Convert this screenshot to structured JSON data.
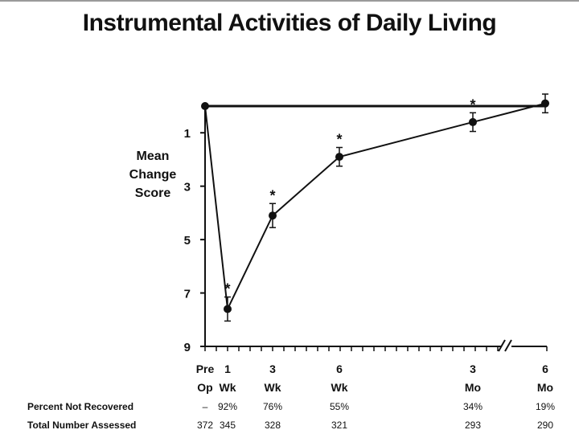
{
  "chart_data": {
    "type": "line",
    "title": "Instrumental Activities of Daily Living",
    "ylabel": [
      "Mean",
      "Change",
      "Score"
    ],
    "y_ticks": [
      1,
      3,
      5,
      7,
      9
    ],
    "ylim": [
      0,
      9
    ],
    "y_inverted": true,
    "x_tick_labels": [
      {
        "top": "Pre",
        "bottom": "Op"
      },
      {
        "top": "1",
        "bottom": "Wk"
      },
      {
        "top": "3",
        "bottom": "Wk"
      },
      {
        "top": "6",
        "bottom": "Wk"
      },
      {
        "top": "3",
        "bottom": "Mo"
      },
      {
        "top": "6",
        "bottom": "Mo"
      }
    ],
    "axis_break_before_last": true,
    "baseline_value": 0,
    "series": [
      {
        "values": [
          0,
          7.6,
          4.1,
          1.9,
          0.6,
          -0.1
        ],
        "error": [
          0,
          0.45,
          0.45,
          0.35,
          0.35,
          0.35
        ],
        "significant": [
          false,
          true,
          true,
          true,
          true,
          false
        ]
      }
    ],
    "significance_marker": "*",
    "table_rows": [
      {
        "label": "Percent Not Recovered",
        "values": [
          "–",
          "92%",
          "76%",
          "55%",
          "34%",
          "19%"
        ]
      },
      {
        "label": "Total Number Assessed",
        "values": [
          "372",
          "345",
          "328",
          "321",
          "293",
          "290"
        ]
      }
    ]
  }
}
